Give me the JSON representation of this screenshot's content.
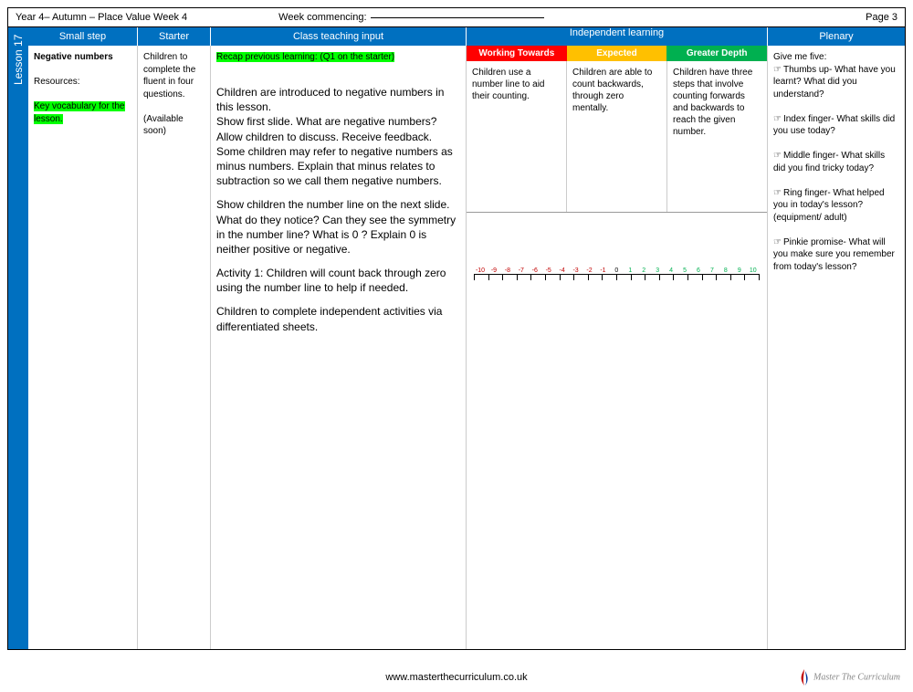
{
  "header": {
    "title": "Year 4– Autumn – Place Value Week 4",
    "week_commencing_label": "Week commencing:",
    "page_label": "Page 3"
  },
  "lesson_tab": "Lesson 17",
  "columns": {
    "small_step": "Small step",
    "starter": "Starter",
    "teaching": "Class teaching input",
    "independent": "Independent learning",
    "plenary": "Plenary"
  },
  "small_step": {
    "title": "Negative numbers",
    "resources_label": "Resources:",
    "vocab": "Key vocabulary for the lesson."
  },
  "starter": {
    "text": "Children to complete the fluent in four questions.",
    "avail": "(Available soon)"
  },
  "teaching": {
    "recap": "Recap previous learning: (Q1 on the starter)",
    "p1": "Children are introduced to negative numbers in this lesson.",
    "p2": "Show first slide. What are negative numbers? Allow children to discuss. Receive feedback. Some children may refer to negative numbers as minus numbers. Explain that minus relates to subtraction so we call them negative numbers.",
    "p3": "Show children the number line on the next slide. What do they notice? Can they see the symmetry in the number line? What is 0 ? Explain 0 is neither positive or negative.",
    "p4": "Activity 1: Children will count back through zero using the number line to help if needed.",
    "p5": "Children to complete independent activities via differentiated sheets."
  },
  "independent": {
    "headers": {
      "wt": "Working Towards",
      "exp": "Expected",
      "gd": "Greater Depth"
    },
    "wt": "Children use a number line to aid their counting.",
    "exp": "Children are able to count backwards, through zero mentally.",
    "gd": "Children have three steps that involve counting forwards and backwards to reach the given number.",
    "numberline": {
      "min": -10,
      "max": 10,
      "neg_color": "#c00000",
      "zero_color": "#000000",
      "pos_color": "#00b050"
    }
  },
  "plenary": {
    "intro": "Give me five:",
    "thumb": "Thumbs up- What have you learnt? What did you understand?",
    "index": "Index finger- What skills did you use today?",
    "middle": "Middle finger- What skills did you find tricky today?",
    "ring": "Ring finger- What helped you in today's lesson? (equipment/ adult)",
    "pinkie": "Pinkie promise- What will you make sure you remember from today's lesson?"
  },
  "footer": {
    "url": "www.masterthecurriculum.co.uk",
    "brand": "Master The Curriculum"
  },
  "colors": {
    "main_blue": "#0070c0",
    "hl_green": "#00ff00",
    "red": "#ff0000",
    "amber": "#ffc000",
    "green": "#00b050"
  }
}
